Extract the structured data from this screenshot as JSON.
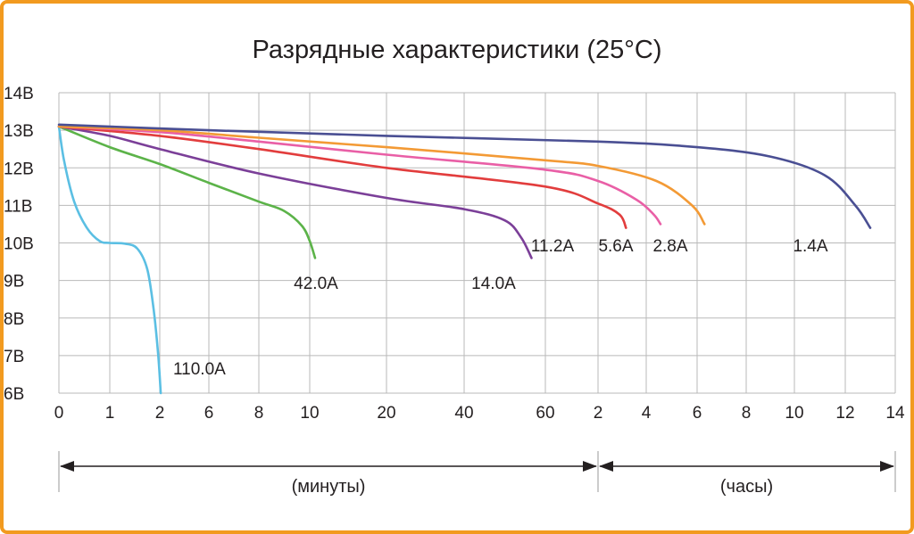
{
  "chart_data": {
    "type": "line",
    "title": "Разрядные характеристики (25°С)",
    "x_tick_labels": [
      "0",
      "1",
      "2",
      "6",
      "8",
      "10",
      "20",
      "40",
      "60",
      "2",
      "4",
      "6",
      "8",
      "10",
      "12",
      "14"
    ],
    "y_tick_labels": [
      "14В",
      "13В",
      "12В",
      "11В",
      "10В",
      "9В",
      "8В",
      "7В",
      "6В"
    ],
    "ylim": [
      6,
      14
    ],
    "ranges": [
      {
        "label": "(минуты)",
        "from_tick": 0,
        "to_tick": 9
      },
      {
        "label": "(часы)",
        "from_tick": 9,
        "to_tick": 16
      }
    ],
    "grid": true,
    "series": [
      {
        "name": "110.0А",
        "color": "#5bbfe3",
        "points": [
          [
            0,
            13.1
          ],
          [
            0.1,
            12.2
          ],
          [
            0.3,
            11.1
          ],
          [
            0.55,
            10.4
          ],
          [
            0.8,
            10.05
          ],
          [
            1.0,
            10.0
          ],
          [
            1.3,
            9.98
          ],
          [
            1.55,
            9.85
          ],
          [
            1.75,
            9.3
          ],
          [
            1.88,
            8.2
          ],
          [
            1.97,
            7.0
          ],
          [
            2.02,
            6.0
          ]
        ]
      },
      {
        "name": "42.0А",
        "color": "#5cb349",
        "points": [
          [
            0,
            13.1
          ],
          [
            1,
            12.55
          ],
          [
            2,
            12.1
          ],
          [
            3,
            11.6
          ],
          [
            4,
            11.1
          ],
          [
            4.5,
            10.85
          ],
          [
            4.85,
            10.45
          ],
          [
            5.0,
            10.05
          ],
          [
            5.07,
            9.6
          ]
        ]
      },
      {
        "name": "14.0А",
        "color": "#7b3f98",
        "points": [
          [
            0,
            13.1
          ],
          [
            1,
            12.85
          ],
          [
            2,
            12.5
          ],
          [
            4,
            11.85
          ],
          [
            6,
            11.2
          ],
          [
            7,
            10.9
          ],
          [
            7.5,
            10.6
          ],
          [
            7.7,
            10.15
          ],
          [
            7.83,
            9.6
          ]
        ]
      },
      {
        "name": "11.2А",
        "color": "#e23d3d",
        "points": [
          [
            0,
            13.1
          ],
          [
            2,
            12.85
          ],
          [
            4,
            12.5
          ],
          [
            6,
            12.0
          ],
          [
            8,
            11.5
          ],
          [
            9,
            11.05
          ],
          [
            9.45,
            10.75
          ],
          [
            9.58,
            10.4
          ]
        ]
      },
      {
        "name": "5.6А",
        "color": "#e95fa6",
        "points": [
          [
            0,
            13.1
          ],
          [
            2,
            12.95
          ],
          [
            4,
            12.7
          ],
          [
            6,
            12.35
          ],
          [
            8,
            11.95
          ],
          [
            9,
            11.65
          ],
          [
            9.8,
            11.15
          ],
          [
            10.15,
            10.75
          ],
          [
            10.28,
            10.5
          ]
        ]
      },
      {
        "name": "2.8А",
        "color": "#f39a35",
        "points": [
          [
            0,
            13.1
          ],
          [
            2,
            13.0
          ],
          [
            4,
            12.8
          ],
          [
            6,
            12.55
          ],
          [
            8,
            12.2
          ],
          [
            9,
            12.05
          ],
          [
            10.2,
            11.65
          ],
          [
            10.9,
            11.0
          ],
          [
            11.15,
            10.5
          ]
        ]
      },
      {
        "name": "1.4А",
        "color": "#4a4f93",
        "points": [
          [
            0,
            13.15
          ],
          [
            3,
            13.0
          ],
          [
            6,
            12.85
          ],
          [
            9,
            12.7
          ],
          [
            11,
            12.55
          ],
          [
            12.5,
            12.3
          ],
          [
            13.6,
            11.8
          ],
          [
            14.2,
            11.0
          ],
          [
            14.5,
            10.4
          ]
        ]
      }
    ]
  }
}
